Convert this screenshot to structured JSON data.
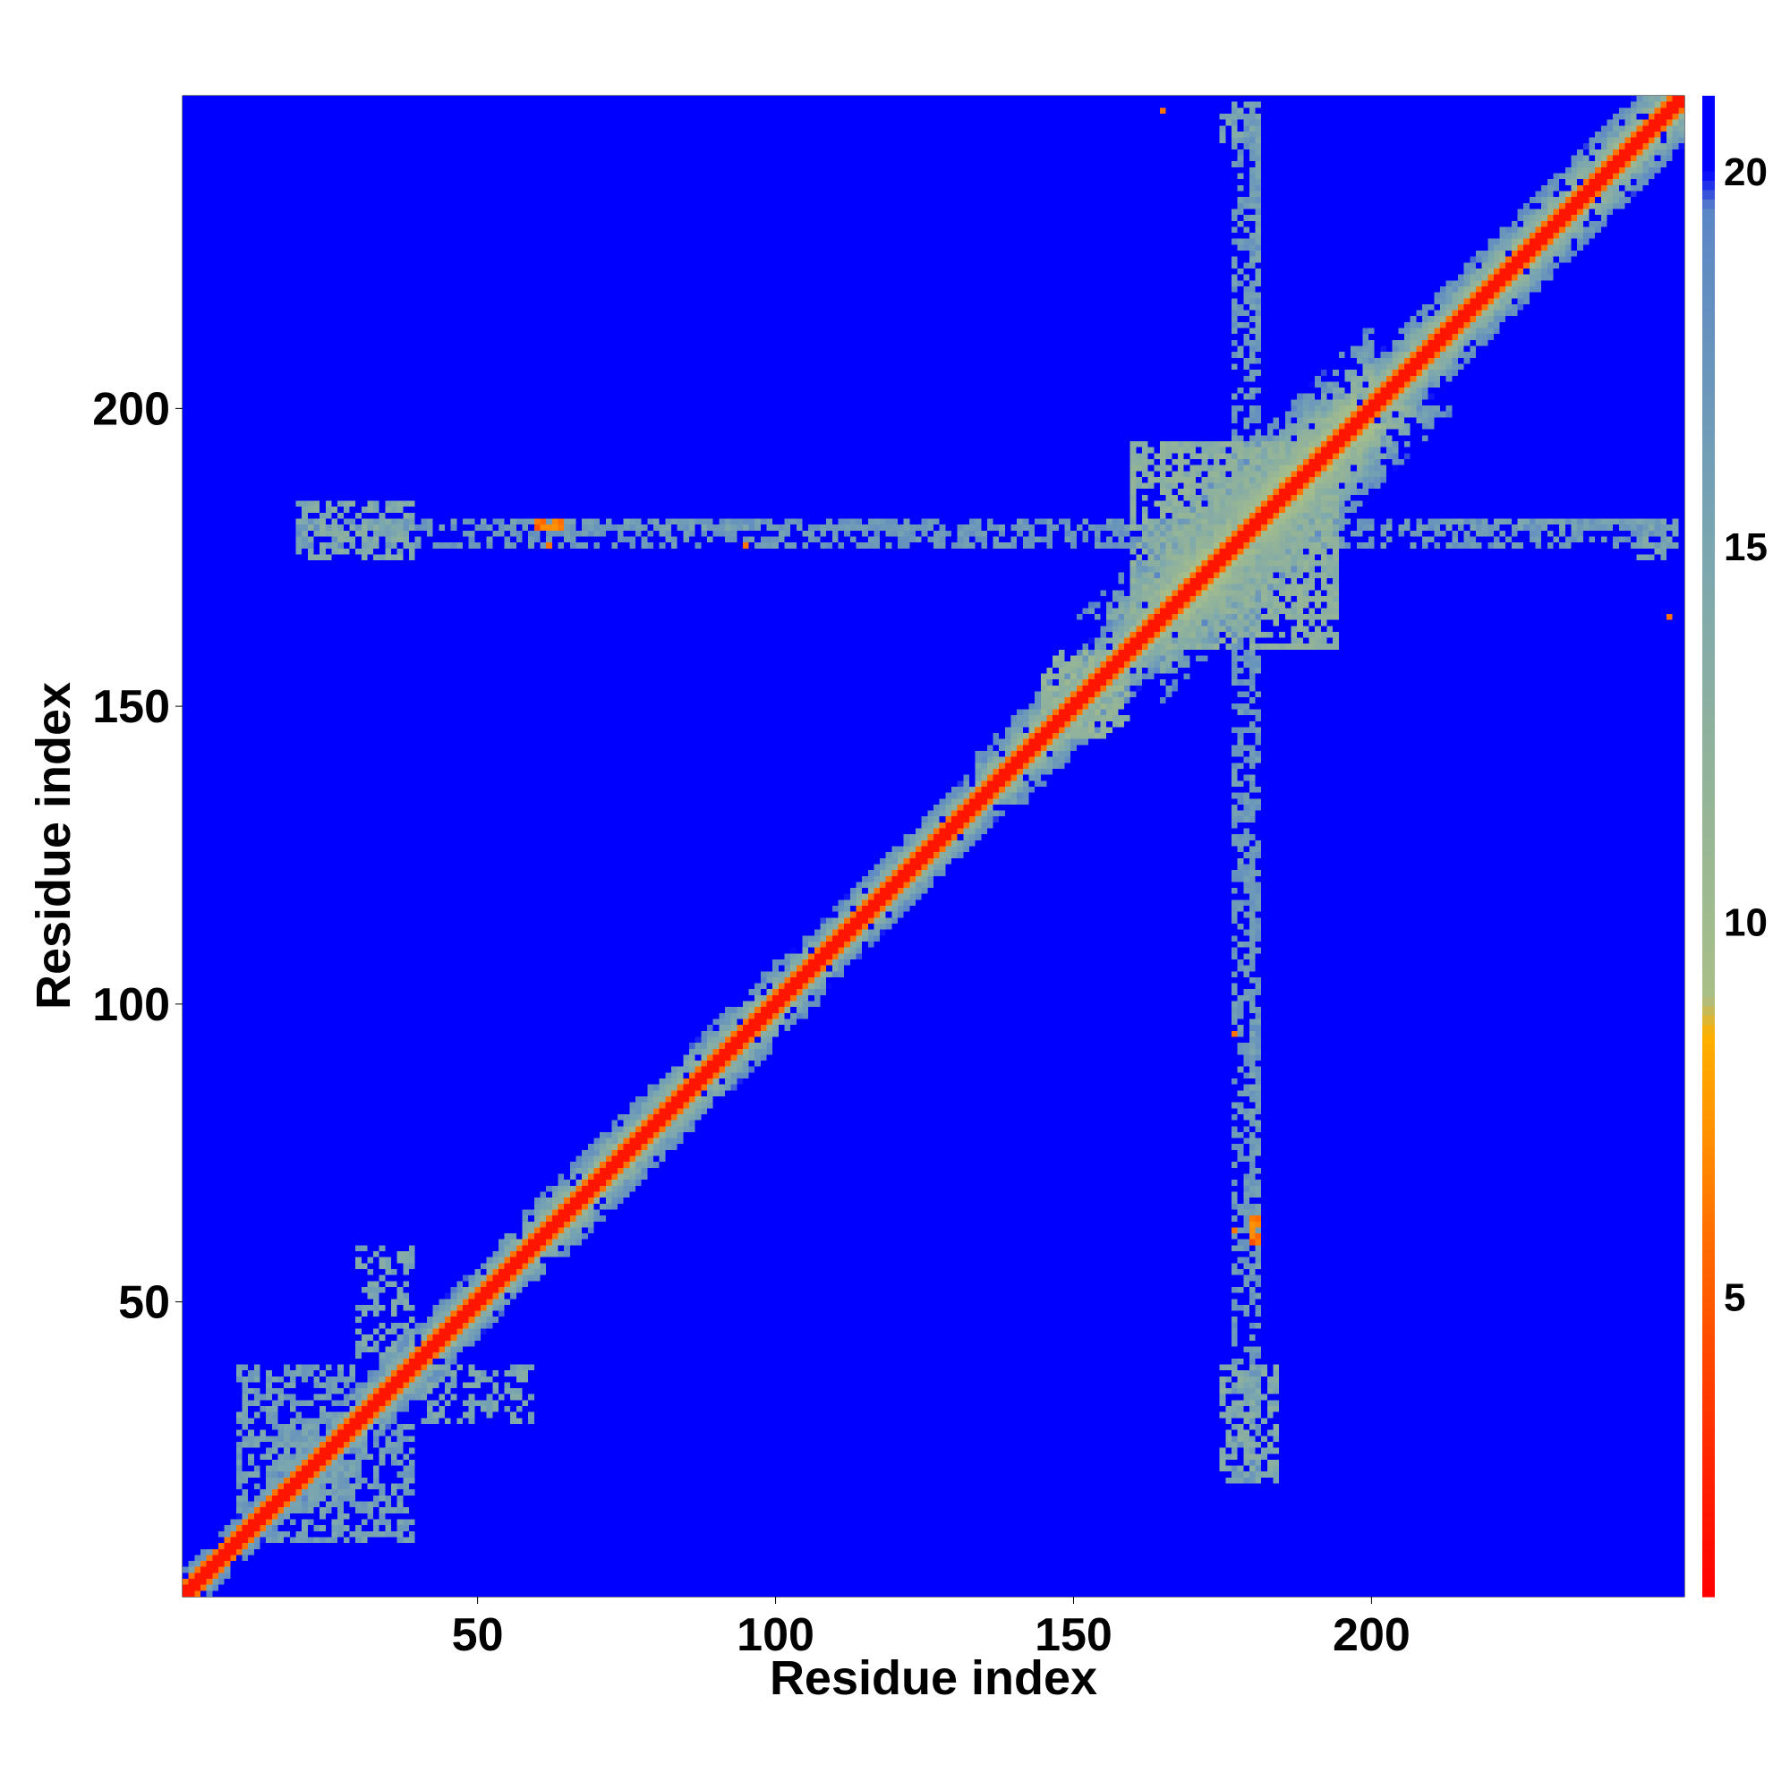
{
  "chart_data": {
    "type": "heatmap",
    "title": "",
    "xlabel": "Residue index",
    "ylabel": "Residue index",
    "xlim": [
      0.5,
      252.5
    ],
    "ylim": [
      0.5,
      252.5
    ],
    "n_residues": 252,
    "x_ticks": [
      50,
      100,
      150,
      200
    ],
    "y_ticks": [
      50,
      100,
      150,
      200
    ],
    "colorbar": {
      "range": [
        1,
        21
      ],
      "ticks": [
        5,
        10,
        15,
        20
      ],
      "stops": [
        {
          "value": 1,
          "color": "#ff0000"
        },
        {
          "value": 3,
          "color": "#ff2a00"
        },
        {
          "value": 5,
          "color": "#ff5a00"
        },
        {
          "value": 7,
          "color": "#ff8c00"
        },
        {
          "value": 8.5,
          "color": "#ffb000"
        },
        {
          "value": 9,
          "color": "#a8bf88"
        },
        {
          "value": 12,
          "color": "#92b39a"
        },
        {
          "value": 15,
          "color": "#7aa6b0"
        },
        {
          "value": 19.5,
          "color": "#5b86c6"
        },
        {
          "value": 20,
          "color": "#0000ff"
        },
        {
          "value": 21,
          "color": "#0000ff"
        }
      ]
    },
    "background_value": 21,
    "diagonal_band": {
      "core_value": 2,
      "near_value": 6,
      "segments": [
        {
          "from": 1,
          "to": 30,
          "width": 4
        },
        {
          "from": 30,
          "to": 60,
          "width": 6
        },
        {
          "from": 60,
          "to": 100,
          "width": 7
        },
        {
          "from": 100,
          "to": 140,
          "width": 6
        },
        {
          "from": 140,
          "to": 165,
          "width": 8
        },
        {
          "from": 165,
          "to": 200,
          "width": 14
        },
        {
          "from": 200,
          "to": 252,
          "width": 8
        }
      ]
    },
    "contact_blocks": [
      {
        "x": [
          30,
          40
        ],
        "y": [
          180,
          182
        ],
        "value": 16
      },
      {
        "x": [
          55,
          100
        ],
        "y": [
          180,
          182
        ],
        "value": 16
      },
      {
        "x": [
          100,
          180
        ],
        "y": [
          180,
          181
        ],
        "value": 17
      },
      {
        "x": [
          210,
          252
        ],
        "y": [
          180,
          182
        ],
        "value": 16
      },
      {
        "x": [
          177,
          182
        ],
        "y": [
          20,
          252
        ],
        "value": 17
      },
      {
        "x": [
          175,
          185
        ],
        "y": [
          20,
          40
        ],
        "value": 14
      },
      {
        "x": [
          30,
          40
        ],
        "y": [
          40,
          60
        ],
        "value": 15
      },
      {
        "x": [
          15,
          40
        ],
        "y": [
          10,
          30
        ],
        "value": 16
      },
      {
        "x": [
          60,
          66
        ],
        "y": [
          180,
          182
        ],
        "value": 6
      },
      {
        "x": [
          177,
          178
        ],
        "y": [
          95,
          96
        ],
        "value": 6
      },
      {
        "x": [
          177,
          178
        ],
        "y": [
          62,
          63
        ],
        "value": 6
      },
      {
        "x": [
          250,
          251
        ],
        "y": [
          165,
          166
        ],
        "value": 6
      },
      {
        "x": [
          175,
          182
        ],
        "y": [
          245,
          252
        ],
        "value": 15
      },
      {
        "x": [
          145,
          155
        ],
        "y": [
          145,
          160
        ],
        "value": 12
      },
      {
        "x": [
          160,
          195
        ],
        "y": [
          165,
          195
        ],
        "value": 13
      }
    ]
  }
}
